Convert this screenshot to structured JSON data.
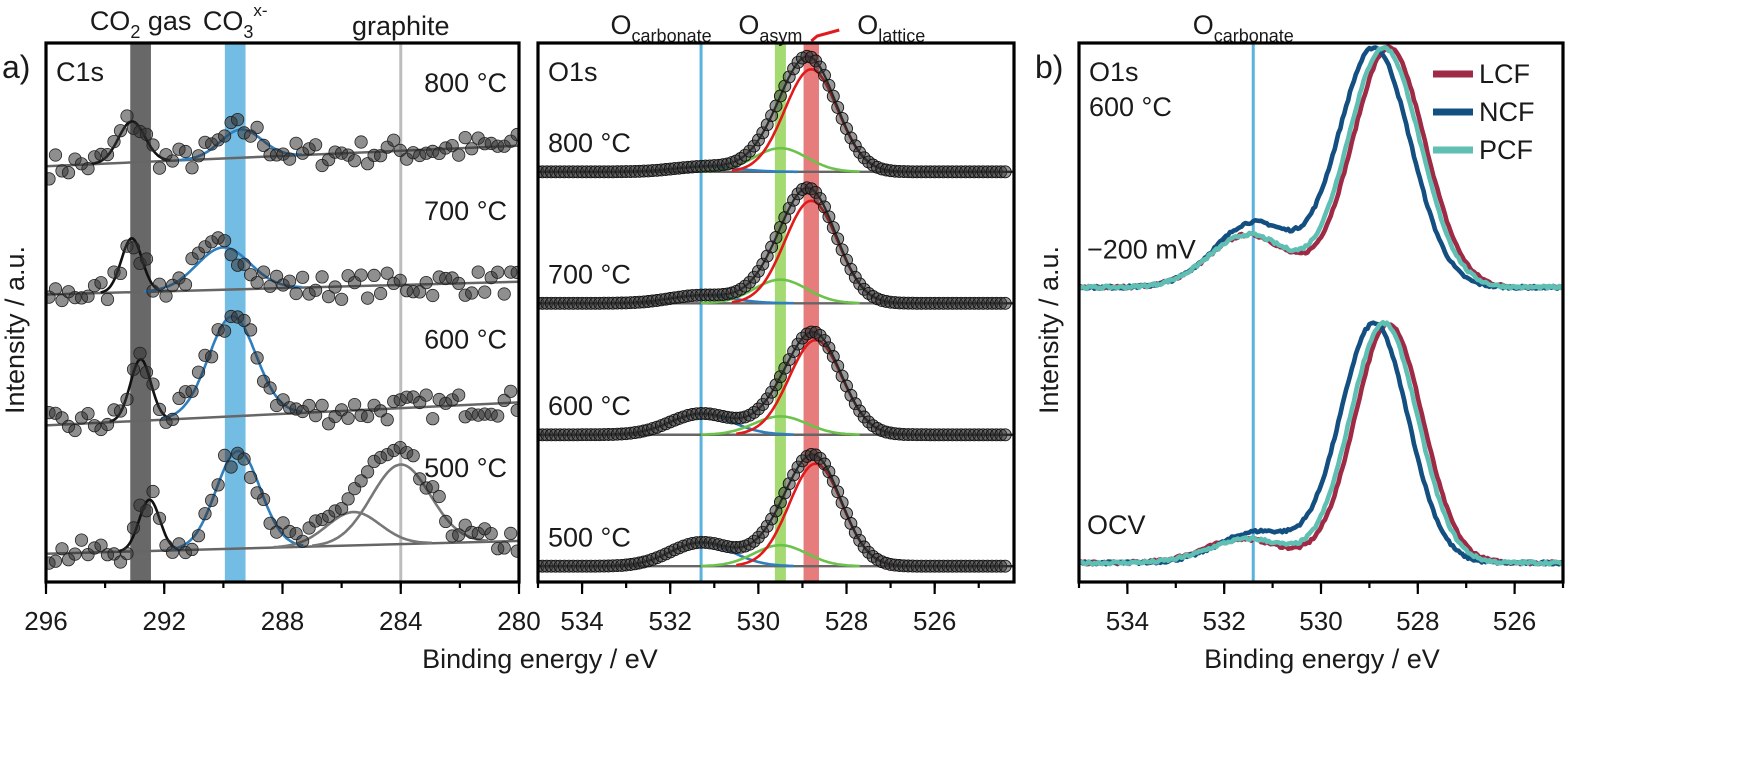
{
  "figure": {
    "panel_a_label": "a)",
    "panel_b_label": "b)",
    "ylabel_a": "Intensity / a.u.",
    "ylabel_b": "Intensity / a.u.",
    "xlabel_a": "Binding energy / eV",
    "xlabel_b": "Binding energy / eV"
  },
  "chart_data": [
    {
      "id": "c1s",
      "type": "scatter",
      "region_label": "C1s",
      "xlim": [
        296,
        280
      ],
      "ylim": [
        -0.2,
        4.0
      ],
      "xticks": [
        296,
        292,
        288,
        284,
        280
      ],
      "xtick_labels": [
        "296",
        "292",
        "288",
        "284",
        "280"
      ],
      "bands": [
        {
          "label": "CO",
          "sub": "2",
          "suffix": " gas",
          "center": 292.8,
          "width": 0.7,
          "color": "#4d4d4d"
        },
        {
          "label": "CO",
          "sub": "3",
          "sup": "x-",
          "center": 289.6,
          "width": 0.7,
          "color": "#5ab2e0"
        }
      ],
      "lines": [
        {
          "label": "graphite",
          "x": 284.0,
          "color": "#bdbdbd"
        }
      ],
      "series": [
        {
          "name": "800 °C",
          "offset": 3.0,
          "baseline": [
            0.04,
            0.2
          ],
          "peaks": [
            {
              "center": 293.1,
              "height": 0.32,
              "width": 0.45,
              "color": "#111111"
            },
            {
              "center": 289.4,
              "height": 0.22,
              "width": 0.7,
              "color": "#2f7fbf"
            }
          ]
        },
        {
          "name": "700 °C",
          "offset": 2.0,
          "baseline": [
            0.04,
            0.14
          ],
          "peaks": [
            {
              "center": 293.1,
              "height": 0.42,
              "width": 0.35,
              "color": "#111111"
            },
            {
              "center": 290.0,
              "height": 0.33,
              "width": 0.9,
              "color": "#2f7fbf"
            }
          ]
        },
        {
          "name": "600 °C",
          "offset": 1.0,
          "baseline": [
            0.02,
            0.2
          ],
          "peaks": [
            {
              "center": 292.8,
              "height": 0.48,
              "width": 0.35,
              "color": "#111111"
            },
            {
              "center": 289.7,
              "height": 0.78,
              "width": 0.8,
              "color": "#2f7fbf"
            }
          ]
        },
        {
          "name": "500 °C",
          "offset": 0.0,
          "baseline": [
            0.02,
            0.12
          ],
          "peaks": [
            {
              "center": 292.5,
              "height": 0.4,
              "width": 0.35,
              "color": "#111111"
            },
            {
              "center": 289.5,
              "height": 0.76,
              "width": 0.75,
              "color": "#2f7fbf"
            },
            {
              "center": 285.6,
              "height": 0.26,
              "width": 0.9,
              "color": "#777777"
            },
            {
              "center": 284.0,
              "height": 0.62,
              "width": 1.0,
              "color": "#777777"
            }
          ]
        }
      ]
    },
    {
      "id": "o1s-temperature",
      "type": "scatter",
      "region_label": "O1s",
      "xlim": [
        535,
        524.2
      ],
      "ylim": [
        -0.1,
        4.0
      ],
      "xticks": [
        534,
        532,
        530,
        528,
        526
      ],
      "xtick_labels": [
        "534",
        "532",
        "530",
        "528",
        "526"
      ],
      "bands": [
        {
          "label": "O",
          "sub": "asym",
          "center": 529.5,
          "width": 0.25,
          "color": "#8fd14f"
        },
        {
          "label": "O",
          "sub": "lattice",
          "center": 528.8,
          "width": 0.35,
          "color": "#e05b5b"
        }
      ],
      "lines": [
        {
          "label": "O",
          "sub": "carbonate",
          "x": 531.3,
          "color": "#5ab2e0"
        }
      ],
      "series": [
        {
          "name": "800 °C",
          "offset": 3.0,
          "peaks": [
            {
              "center": 531.2,
              "height": 0.04,
              "width": 0.7,
              "color": "#2f7fbf"
            },
            {
              "center": 529.5,
              "height": 0.18,
              "width": 0.6,
              "color": "#6cc24a"
            },
            {
              "center": 528.8,
              "height": 0.78,
              "width": 0.6,
              "color": "#e31a1c"
            }
          ]
        },
        {
          "name": "700 °C",
          "offset": 2.0,
          "peaks": [
            {
              "center": 531.3,
              "height": 0.06,
              "width": 0.7,
              "color": "#2f7fbf"
            },
            {
              "center": 529.5,
              "height": 0.18,
              "width": 0.6,
              "color": "#6cc24a"
            },
            {
              "center": 528.8,
              "height": 0.78,
              "width": 0.6,
              "color": "#e31a1c"
            }
          ]
        },
        {
          "name": "600 °C",
          "offset": 1.0,
          "peaks": [
            {
              "center": 531.3,
              "height": 0.16,
              "width": 0.7,
              "color": "#2f7fbf"
            },
            {
              "center": 529.5,
              "height": 0.14,
              "width": 0.6,
              "color": "#6cc24a"
            },
            {
              "center": 528.7,
              "height": 0.72,
              "width": 0.6,
              "color": "#e31a1c"
            }
          ]
        },
        {
          "name": "500 °C",
          "offset": 0.0,
          "peaks": [
            {
              "center": 531.3,
              "height": 0.18,
              "width": 0.7,
              "color": "#2f7fbf"
            },
            {
              "center": 529.5,
              "height": 0.16,
              "width": 0.6,
              "color": "#6cc24a"
            },
            {
              "center": 528.7,
              "height": 0.78,
              "width": 0.6,
              "color": "#e31a1c"
            }
          ]
        }
      ]
    },
    {
      "id": "o1s-600",
      "type": "line",
      "region_label": "O1s",
      "temperature_label": "600 °C",
      "xlim": [
        535,
        525
      ],
      "ylim": [
        -0.05,
        2.2
      ],
      "xticks": [
        534,
        532,
        530,
        528,
        526
      ],
      "xtick_labels": [
        "534",
        "532",
        "530",
        "528",
        "526"
      ],
      "lines": [
        {
          "label": "O",
          "sub": "carbonate",
          "x": 531.4,
          "color": "#5ab2e0"
        }
      ],
      "legend": {
        "position": "top-right"
      },
      "groups": [
        {
          "name": "−200 mV",
          "offset": 1.15
        },
        {
          "name": "OCV",
          "offset": 0.0
        }
      ],
      "series": [
        {
          "name": "LCF",
          "color": "#9e2a45",
          "curves": [
            {
              "group": "−200 mV",
              "main_center": 528.6,
              "main_height": 1.0,
              "main_width": 0.75,
              "carb_center": 531.5,
              "carb_height": 0.22
            },
            {
              "group": "OCV",
              "main_center": 528.6,
              "main_height": 1.0,
              "main_width": 0.7,
              "carb_center": 531.6,
              "carb_height": 0.1
            }
          ]
        },
        {
          "name": "NCF",
          "color": "#134f80",
          "curves": [
            {
              "group": "−200 mV",
              "main_center": 528.9,
              "main_height": 1.0,
              "main_width": 0.75,
              "carb_center": 531.4,
              "carb_height": 0.27
            },
            {
              "group": "OCV",
              "main_center": 528.9,
              "main_height": 1.0,
              "main_width": 0.7,
              "carb_center": 531.3,
              "carb_height": 0.13
            }
          ]
        },
        {
          "name": "PCF",
          "color": "#5ebfb2",
          "curves": [
            {
              "group": "−200 mV",
              "main_center": 528.7,
              "main_height": 1.0,
              "main_width": 0.75,
              "carb_center": 531.5,
              "carb_height": 0.22
            },
            {
              "group": "OCV",
              "main_center": 528.7,
              "main_height": 1.0,
              "main_width": 0.7,
              "carb_center": 531.5,
              "carb_height": 0.1
            }
          ]
        }
      ]
    }
  ]
}
